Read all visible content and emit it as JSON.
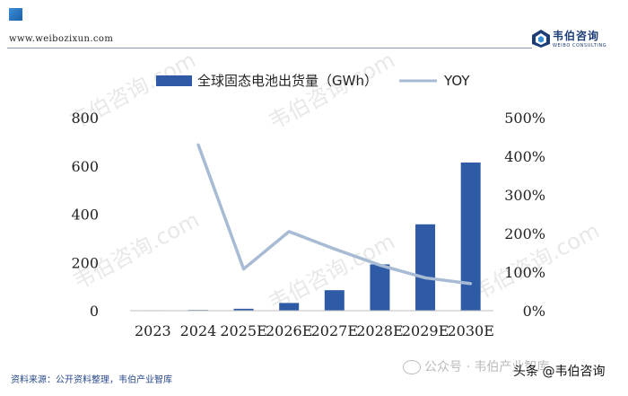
{
  "header": {
    "site_url": "www.weibozixun.com",
    "brand_name": "韦伯咨询",
    "brand_sub": "WEIBO CONSULTING"
  },
  "watermark_text": "韦伯咨询.com",
  "footer": {
    "source": "资料来源：公开资料整理，韦伯产业智库",
    "wechat": "公众号 · 韦伯产业智库",
    "toutiao": "头条 @韦伯咨询"
  },
  "colors": {
    "bar": "#2f5aa5",
    "line": "#a8bbd4",
    "axis_text": "#222222"
  },
  "chart_data": {
    "type": "bar",
    "categories": [
      "2023",
      "2024",
      "2025E",
      "2026E",
      "2027E",
      "2028E",
      "2029E",
      "2030E"
    ],
    "series": [
      {
        "name": "全球固态电池出货量（GWh）",
        "type": "bar",
        "axis": "left",
        "values": [
          1,
          3,
          8,
          32,
          85,
          192,
          358,
          614
        ]
      },
      {
        "name": "YOY",
        "type": "line",
        "axis": "right",
        "values": [
          null,
          430,
          108,
          205,
          160,
          118,
          85,
          70
        ]
      }
    ],
    "y_left": {
      "ticks": [
        "0",
        "200",
        "400",
        "600",
        "800"
      ],
      "ylim": [
        0,
        800
      ]
    },
    "y_right": {
      "ticks": [
        "0%",
        "100%",
        "200%",
        "300%",
        "400%",
        "500%"
      ],
      "ylim": [
        0,
        500
      ]
    },
    "legend": "top-center",
    "grid": false
  }
}
